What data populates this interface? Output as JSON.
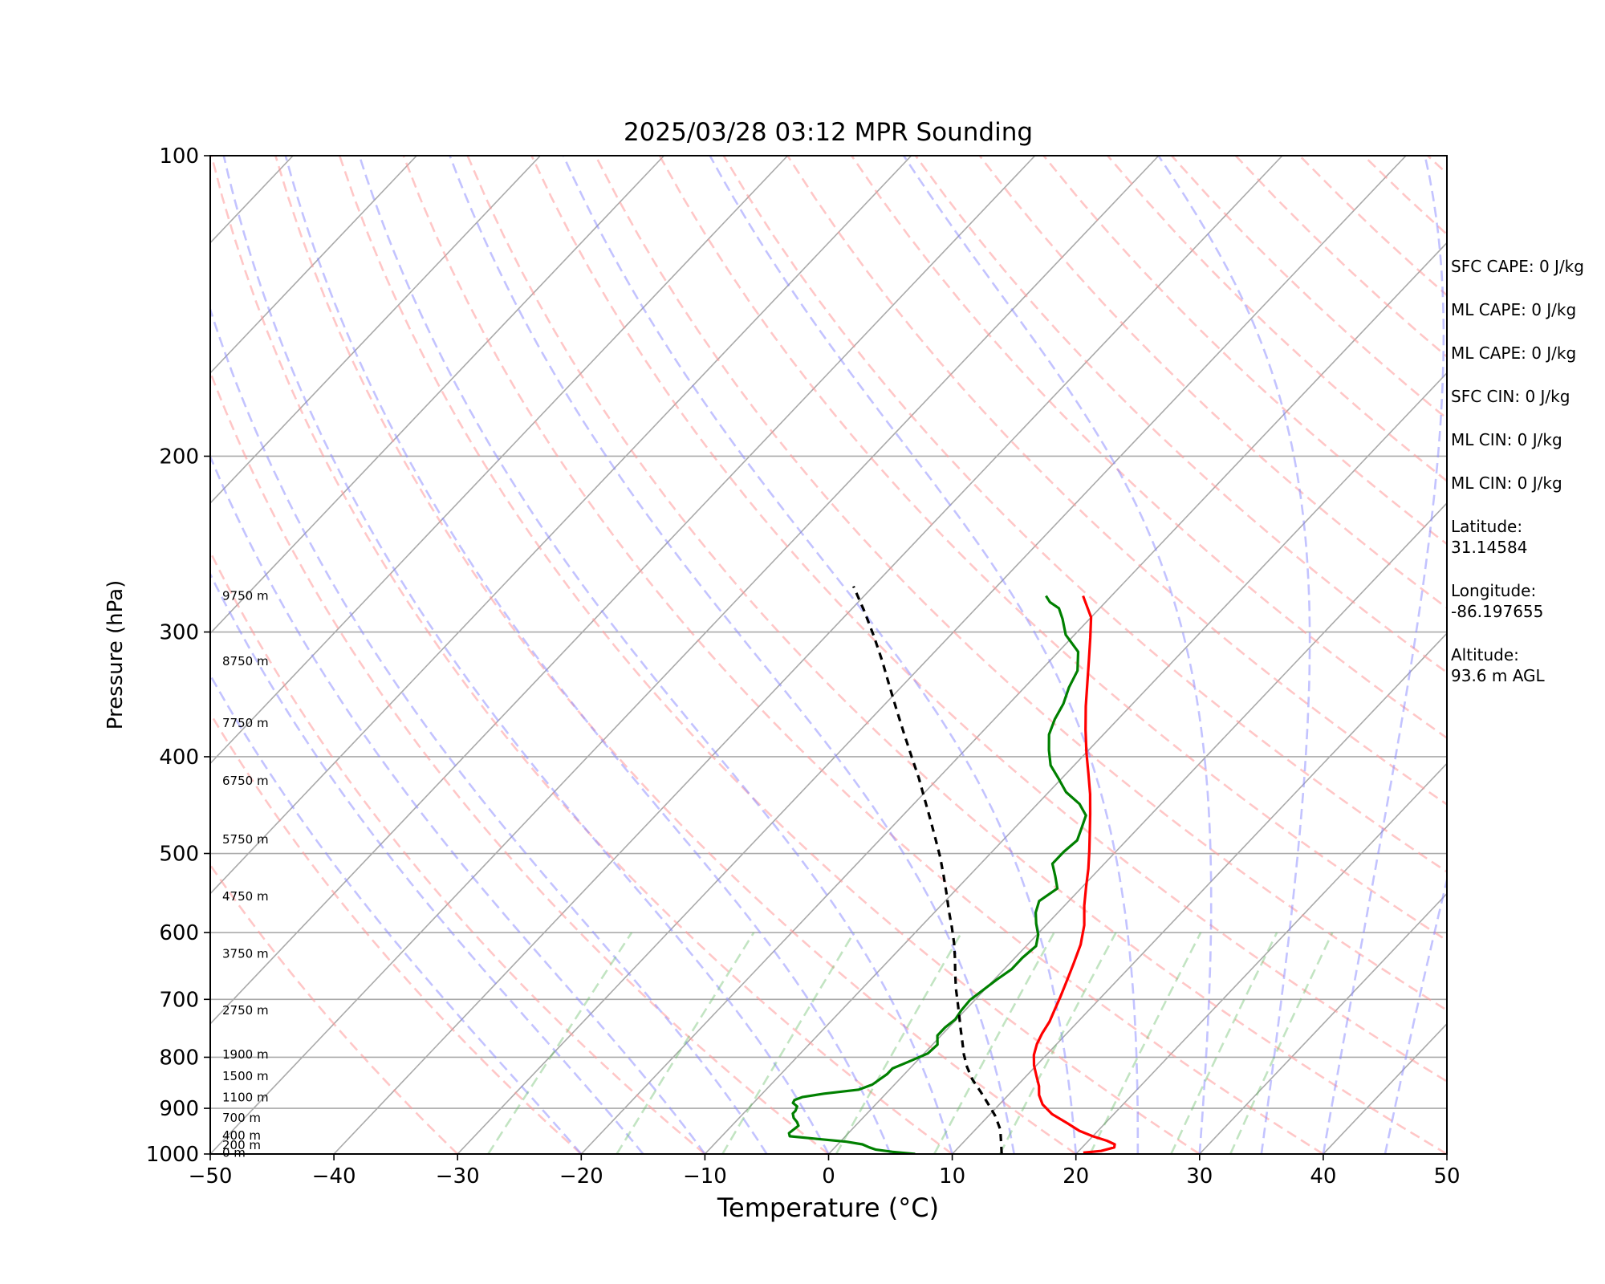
{
  "chart_data": {
    "type": "line",
    "title": "2025/03/28 03:12 MPR Sounding",
    "xlabel": "Temperature (°C)",
    "ylabel": "Pressure (hPa)",
    "xlim": [
      -50,
      50
    ],
    "ylim": [
      1000,
      100
    ],
    "y_scale": "log",
    "skew": "skew-T (isotherms tilted)",
    "grid": true,
    "x_ticks": [
      -50,
      -40,
      -30,
      -20,
      -10,
      0,
      10,
      20,
      30,
      40,
      50
    ],
    "x_tick_labels": [
      "−50",
      "−40",
      "−30",
      "−20",
      "−10",
      "0",
      "10",
      "20",
      "30",
      "40",
      "50"
    ],
    "y_ticks": [
      1000,
      900,
      800,
      700,
      600,
      500,
      400,
      300,
      200,
      100
    ],
    "y_tick_labels": [
      "1000",
      "900",
      "800",
      "700",
      "600",
      "500",
      "400",
      "300",
      "200",
      "100"
    ],
    "height_labels": [
      {
        "p": 997,
        "label": "0 m"
      },
      {
        "p": 980,
        "label": "200 m"
      },
      {
        "p": 958,
        "label": "400 m"
      },
      {
        "p": 920,
        "label": "700 m"
      },
      {
        "p": 878,
        "label": "1100 m"
      },
      {
        "p": 836,
        "label": "1500 m"
      },
      {
        "p": 795,
        "label": "1900 m"
      },
      {
        "p": 718,
        "label": "2750 m"
      },
      {
        "p": 630,
        "label": "3750 m"
      },
      {
        "p": 552,
        "label": "4750 m"
      },
      {
        "p": 484,
        "label": "5750 m"
      },
      {
        "p": 423,
        "label": "6750 m"
      },
      {
        "p": 370,
        "label": "7750 m"
      },
      {
        "p": 321,
        "label": "8750 m"
      },
      {
        "p": 276,
        "label": "9750 m"
      }
    ],
    "series": [
      {
        "role": "temperature",
        "color": "#ff0000",
        "points": [
          [
            20.5,
            997
          ],
          [
            21.8,
            993
          ],
          [
            22.6,
            985
          ],
          [
            22.4,
            978
          ],
          [
            21.5,
            970
          ],
          [
            20.0,
            960
          ],
          [
            18.5,
            948
          ],
          [
            17.0,
            932
          ],
          [
            15.0,
            912
          ],
          [
            13.5,
            892
          ],
          [
            12.5,
            873
          ],
          [
            11.8,
            855
          ],
          [
            10.8,
            835
          ],
          [
            9.8,
            815
          ],
          [
            9.0,
            796
          ],
          [
            8.4,
            776
          ],
          [
            8.0,
            757
          ],
          [
            7.7,
            737
          ],
          [
            7.2,
            717
          ],
          [
            6.7,
            697
          ],
          [
            6.0,
            672
          ],
          [
            5.2,
            645
          ],
          [
            4.3,
            617
          ],
          [
            3.1,
            590
          ],
          [
            1.6,
            564
          ],
          [
            0.3,
            540
          ],
          [
            -0.9,
            518
          ],
          [
            -2.2,
            497
          ],
          [
            -3.6,
            476
          ],
          [
            -5.0,
            456
          ],
          [
            -6.5,
            436
          ],
          [
            -8.2,
            416
          ],
          [
            -10.0,
            396
          ],
          [
            -11.8,
            376
          ],
          [
            -13.6,
            356
          ],
          [
            -15.3,
            337
          ],
          [
            -16.9,
            320
          ],
          [
            -18.5,
            304
          ],
          [
            -20.0,
            290
          ],
          [
            -22.3,
            276
          ]
        ]
      },
      {
        "role": "dewpoint",
        "color": "#008000",
        "points": [
          [
            7.0,
            1000
          ],
          [
            5.0,
            995
          ],
          [
            3.5,
            990
          ],
          [
            2.8,
            985
          ],
          [
            2.0,
            978
          ],
          [
            0.5,
            972
          ],
          [
            -2.0,
            966
          ],
          [
            -4.5,
            960
          ],
          [
            -4.8,
            953
          ],
          [
            -4.7,
            945
          ],
          [
            -4.6,
            937
          ],
          [
            -5.0,
            929
          ],
          [
            -5.6,
            920
          ],
          [
            -6.0,
            911
          ],
          [
            -6.0,
            905
          ],
          [
            -6.2,
            896
          ],
          [
            -6.8,
            889
          ],
          [
            -6.9,
            883
          ],
          [
            -6.5,
            877
          ],
          [
            -5.0,
            870
          ],
          [
            -2.5,
            862
          ],
          [
            -1.8,
            852
          ],
          [
            -1.6,
            842
          ],
          [
            -1.4,
            832
          ],
          [
            -1.4,
            821
          ],
          [
            -0.6,
            808
          ],
          [
            0.3,
            793
          ],
          [
            0.4,
            777
          ],
          [
            -0.3,
            761
          ],
          [
            -0.3,
            747
          ],
          [
            -0.1,
            733
          ],
          [
            -0.3,
            718
          ],
          [
            -0.4,
            701
          ],
          [
            -0.1,
            685
          ],
          [
            0.2,
            669
          ],
          [
            0.6,
            653
          ],
          [
            0.6,
            636
          ],
          [
            0.8,
            619
          ],
          [
            0.1,
            603
          ],
          [
            -0.9,
            588
          ],
          [
            -1.8,
            573
          ],
          [
            -2.4,
            558
          ],
          [
            -1.9,
            542
          ],
          [
            -3.0,
            527
          ],
          [
            -4.2,
            512
          ],
          [
            -4.2,
            498
          ],
          [
            -4.0,
            485
          ],
          [
            -4.6,
            471
          ],
          [
            -5.2,
            458
          ],
          [
            -6.6,
            446
          ],
          [
            -8.6,
            434
          ],
          [
            -10.2,
            421
          ],
          [
            -11.9,
            408
          ],
          [
            -13.2,
            394
          ],
          [
            -14.4,
            380
          ],
          [
            -15.1,
            367
          ],
          [
            -15.6,
            354
          ],
          [
            -16.4,
            341
          ],
          [
            -17.0,
            328
          ],
          [
            -18.4,
            314
          ],
          [
            -20.7,
            302
          ],
          [
            -22.2,
            291
          ],
          [
            -23.3,
            284
          ],
          [
            -24.5,
            280
          ],
          [
            -25.3,
            276
          ]
        ]
      },
      {
        "role": "parcel",
        "color": "#000000",
        "dashed": true,
        "points": [
          [
            14.0,
            1000
          ],
          [
            13.0,
            972
          ],
          [
            12.0,
            945
          ],
          [
            10.5,
            915
          ],
          [
            9.0,
            890
          ],
          [
            7.5,
            866
          ],
          [
            5.9,
            842
          ],
          [
            4.5,
            818
          ],
          [
            3.3,
            795
          ],
          [
            2.2,
            772
          ],
          [
            1.1,
            750
          ],
          [
            0.0,
            728
          ],
          [
            -1.2,
            705
          ],
          [
            -2.4,
            683
          ],
          [
            -3.6,
            660
          ],
          [
            -4.8,
            637
          ],
          [
            -6.1,
            614
          ],
          [
            -7.5,
            592
          ],
          [
            -9.0,
            570
          ],
          [
            -10.5,
            548
          ],
          [
            -12.1,
            526
          ],
          [
            -13.8,
            504
          ],
          [
            -15.6,
            483
          ],
          [
            -17.5,
            462
          ],
          [
            -19.5,
            441
          ],
          [
            -21.6,
            420
          ],
          [
            -23.8,
            400
          ],
          [
            -26.1,
            380
          ],
          [
            -28.5,
            360
          ],
          [
            -31.0,
            340
          ],
          [
            -33.5,
            321
          ],
          [
            -36.1,
            303
          ],
          [
            -38.8,
            286
          ],
          [
            -41.6,
            270
          ]
        ]
      }
    ]
  },
  "info": {
    "sfc_cape": "SFC CAPE: 0 J/kg",
    "ml_cape_1": "ML CAPE: 0 J/kg",
    "ml_cape_2": "ML CAPE: 0 J/kg",
    "sfc_cin": "SFC CIN: 0 J/kg",
    "ml_cin_1": "ML CIN: 0 J/kg",
    "ml_cin_2": "ML CIN: 0 J/kg",
    "latitude_label": "Latitude:",
    "latitude_value": "31.14584",
    "longitude_label": "Longitude:",
    "longitude_value": "-86.197655",
    "altitude_label": "Altitude:",
    "altitude_value": "93.6 m AGL"
  }
}
